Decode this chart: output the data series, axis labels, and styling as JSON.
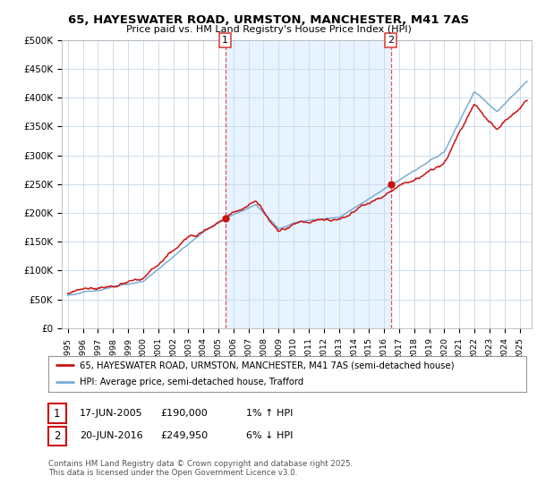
{
  "title_line1": "65, HAYESWATER ROAD, URMSTON, MANCHESTER, M41 7AS",
  "title_line2": "Price paid vs. HM Land Registry's House Price Index (HPI)",
  "ylim": [
    0,
    500000
  ],
  "yticks": [
    0,
    50000,
    100000,
    150000,
    200000,
    250000,
    300000,
    350000,
    400000,
    450000,
    500000
  ],
  "ytick_labels": [
    "£0",
    "£50K",
    "£100K",
    "£150K",
    "£200K",
    "£250K",
    "£300K",
    "£350K",
    "£400K",
    "£450K",
    "£500K"
  ],
  "hpi_color": "#7aadd4",
  "price_color": "#cc1111",
  "vline_color": "#dd4444",
  "shade_color": "#ddeeff",
  "marker1_year": 2005.46,
  "marker1_price": 190000,
  "marker2_year": 2016.46,
  "marker2_price": 249950,
  "legend_line1": "65, HAYESWATER ROAD, URMSTON, MANCHESTER, M41 7AS (semi-detached house)",
  "legend_line2": "HPI: Average price, semi-detached house, Trafford",
  "note1_date": "17-JUN-2005",
  "note1_price": "£190,000",
  "note1_hpi": "1% ↑ HPI",
  "note2_date": "20-JUN-2016",
  "note2_price": "£249,950",
  "note2_hpi": "6% ↓ HPI",
  "footer": "Contains HM Land Registry data © Crown copyright and database right 2025.\nThis data is licensed under the Open Government Licence v3.0.",
  "background_color": "#ffffff"
}
